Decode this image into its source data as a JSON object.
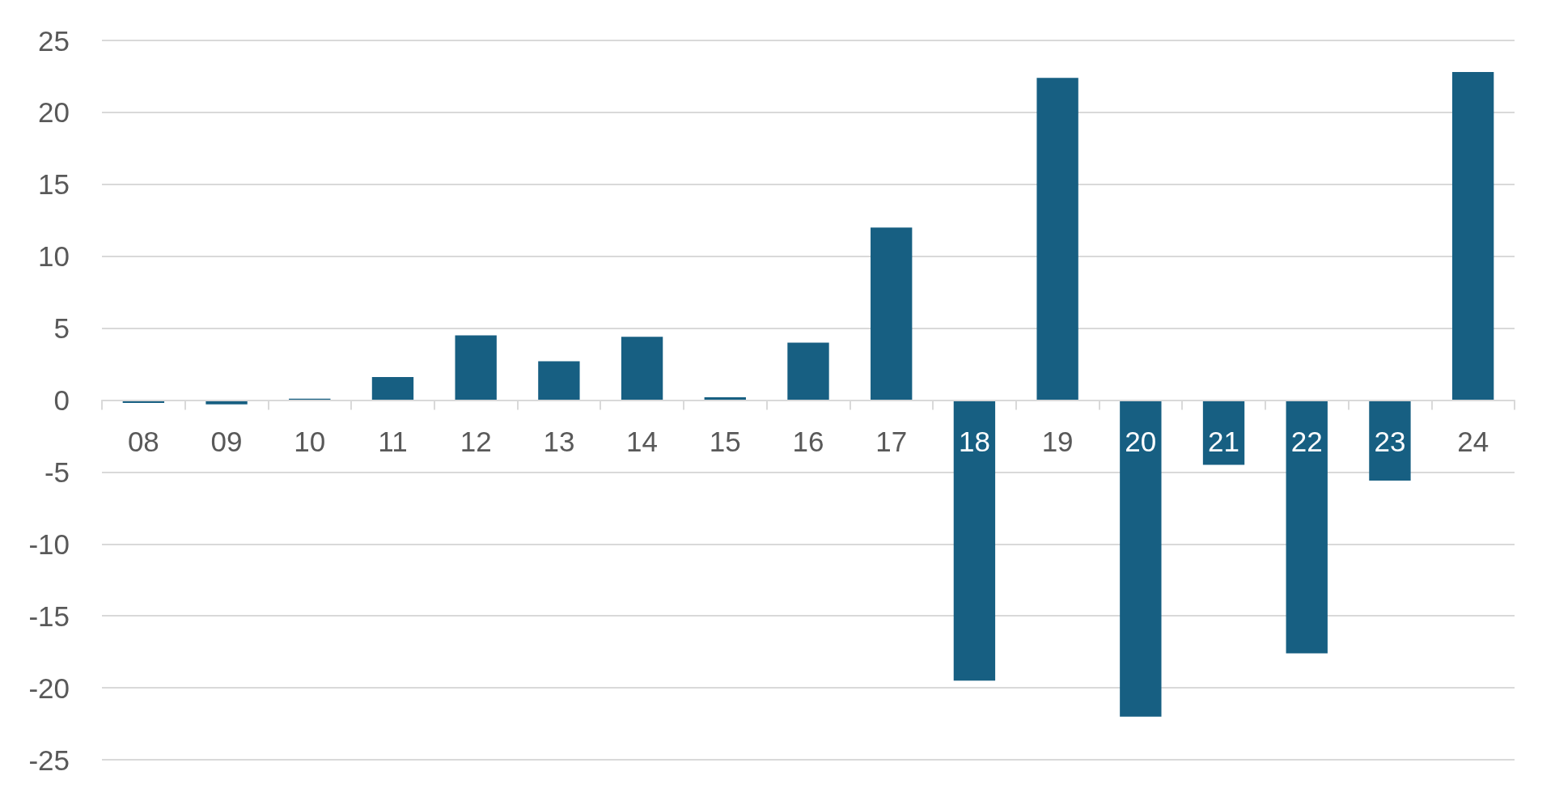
{
  "chart_data": {
    "type": "bar",
    "categories": [
      "08",
      "09",
      "10",
      "11",
      "12",
      "13",
      "14",
      "15",
      "16",
      "17",
      "18",
      "19",
      "20",
      "21",
      "22",
      "23",
      "24"
    ],
    "values": [
      -0.2,
      -0.3,
      0.1,
      1.6,
      4.5,
      2.7,
      4.4,
      0.2,
      4.0,
      12.0,
      -19.5,
      22.4,
      -22.0,
      -4.5,
      -17.6,
      -5.6,
      22.8
    ],
    "color": "#175f82",
    "ylim": [
      -25,
      25
    ],
    "yticks": [
      -25,
      -20,
      -15,
      -10,
      -5,
      0,
      5,
      10,
      15,
      20,
      25
    ],
    "grid": "y"
  }
}
